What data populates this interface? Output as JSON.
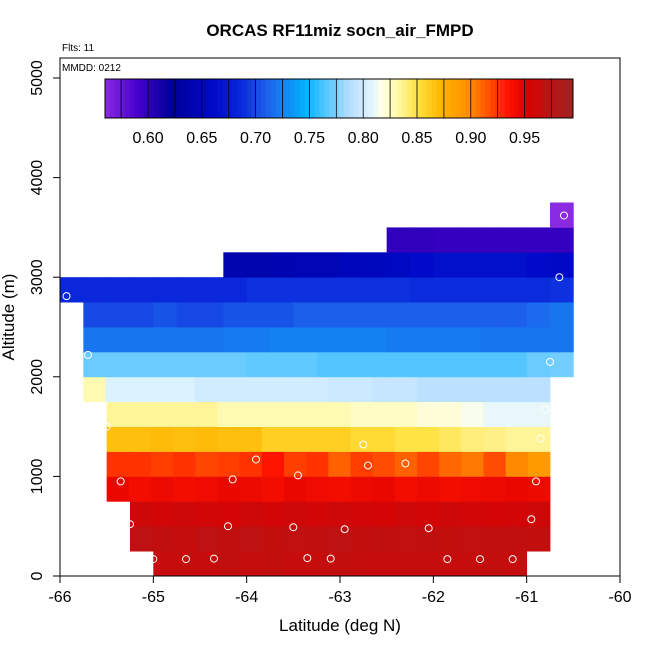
{
  "chart_data": {
    "type": "heatmap",
    "title": "ORCAS RF11miz socn_air_FMPD",
    "xlabel": "Latitude (deg N)",
    "ylabel": "Altitude (m)",
    "xlim": [
      -66,
      -60
    ],
    "ylim": [
      0,
      5200
    ],
    "x_ticks": [
      -66,
      -65,
      -64,
      -63,
      -62,
      -61,
      -60
    ],
    "y_ticks": [
      0,
      1000,
      2000,
      3000,
      4000,
      5000
    ],
    "flights_note": "Flts: 11",
    "date_note": "MMDD: 0212",
    "colorbar": {
      "vmin": 0.56,
      "vmax": 0.995,
      "ticks": [
        0.6,
        0.65,
        0.7,
        0.75,
        0.8,
        0.85,
        0.9,
        0.95
      ],
      "tick_labels": [
        "0.60",
        "0.65",
        "0.70",
        "0.75",
        "0.80",
        "0.85",
        "0.90",
        "0.95"
      ]
    },
    "bin_height_m": 250,
    "rows": [
      {
        "alt": 125,
        "x_start": -65.0,
        "x_end": -61.0,
        "values": [
          0.965,
          0.966,
          0.965,
          0.968,
          0.966,
          0.967,
          0.965,
          0.966,
          0.967,
          0.966,
          0.965,
          0.966,
          0.966,
          0.965,
          0.966,
          0.967,
          0.966
        ]
      },
      {
        "alt": 375,
        "x_start": -65.25,
        "x_end": -60.75,
        "values": [
          0.97,
          0.968,
          0.966,
          0.97,
          0.968,
          0.97,
          0.967,
          0.969,
          0.968,
          0.97,
          0.967,
          0.968,
          0.969,
          0.968,
          0.967,
          0.969,
          0.968,
          0.968,
          0.967
        ]
      },
      {
        "alt": 625,
        "x_start": -65.25,
        "x_end": -60.75,
        "values": [
          0.96,
          0.958,
          0.96,
          0.958,
          0.957,
          0.96,
          0.958,
          0.96,
          0.958,
          0.96,
          0.958,
          0.957,
          0.96,
          0.958,
          0.96,
          0.958,
          0.957,
          0.958,
          0.96
        ]
      },
      {
        "alt": 875,
        "x_start": -65.5,
        "x_end": -60.75,
        "values": [
          0.945,
          0.94,
          0.943,
          0.94,
          0.942,
          0.945,
          0.943,
          0.94,
          0.945,
          0.942,
          0.94,
          0.943,
          0.945,
          0.94,
          0.943,
          0.94,
          0.942,
          0.943,
          0.945,
          0.943
        ]
      },
      {
        "alt": 1125,
        "x_start": -65.5,
        "x_end": -60.75,
        "values": [
          0.925,
          0.925,
          0.922,
          0.925,
          0.92,
          0.922,
          0.925,
          0.935,
          0.922,
          0.925,
          0.912,
          0.922,
          0.918,
          0.912,
          0.92,
          0.91,
          0.905,
          0.918,
          0.9,
          0.89
        ]
      },
      {
        "alt": 1375,
        "x_start": -65.5,
        "x_end": -60.75,
        "values": [
          0.868,
          0.868,
          0.87,
          0.868,
          0.87,
          0.868,
          0.868,
          0.86,
          0.86,
          0.86,
          0.86,
          0.855,
          0.855,
          0.85,
          0.85,
          0.845,
          0.84,
          0.838,
          0.835,
          0.835
        ]
      },
      {
        "alt": 1625,
        "x_start": -65.5,
        "x_end": -60.75,
        "values": [
          0.835,
          0.835,
          0.835,
          0.835,
          0.835,
          0.83,
          0.83,
          0.83,
          0.83,
          0.83,
          0.83,
          0.825,
          0.825,
          0.825,
          0.82,
          0.82,
          0.815,
          0.81,
          0.81,
          0.81
        ]
      },
      {
        "alt": 1875,
        "x_start": -65.75,
        "x_end": -60.75,
        "values": [
          0.83,
          0.805,
          0.805,
          0.805,
          0.805,
          0.8,
          0.8,
          0.8,
          0.8,
          0.8,
          0.8,
          0.798,
          0.798,
          0.795,
          0.795,
          0.79,
          0.79,
          0.79,
          0.79,
          0.79,
          0.79
        ]
      },
      {
        "alt": 2125,
        "x_start": -65.75,
        "x_end": -60.5,
        "values": [
          0.77,
          0.77,
          0.77,
          0.77,
          0.77,
          0.77,
          0.77,
          0.768,
          0.768,
          0.768,
          0.765,
          0.765,
          0.765,
          0.765,
          0.765,
          0.765,
          0.765,
          0.765,
          0.765,
          0.77,
          0.772
        ]
      },
      {
        "alt": 2375,
        "x_start": -65.75,
        "x_end": -60.5,
        "values": [
          0.72,
          0.72,
          0.72,
          0.72,
          0.72,
          0.72,
          0.722,
          0.722,
          0.725,
          0.725,
          0.725,
          0.725,
          0.725,
          0.722,
          0.722,
          0.722,
          0.722,
          0.72,
          0.72,
          0.72,
          0.72
        ]
      },
      {
        "alt": 2625,
        "x_start": -65.75,
        "x_end": -60.5,
        "values": [
          0.7,
          0.7,
          0.7,
          0.705,
          0.7,
          0.7,
          0.705,
          0.705,
          0.705,
          0.71,
          0.71,
          0.71,
          0.71,
          0.71,
          0.71,
          0.71,
          0.71,
          0.71,
          0.71,
          0.715,
          0.72
        ]
      },
      {
        "alt": 2875,
        "x_start": -66.0,
        "x_end": -60.5,
        "values": [
          0.685,
          0.685,
          0.685,
          0.685,
          0.685,
          0.685,
          0.685,
          0.685,
          0.69,
          0.69,
          0.69,
          0.69,
          0.69,
          0.69,
          0.69,
          0.688,
          0.688,
          0.688,
          0.688,
          0.688,
          0.688,
          0.69
        ]
      },
      {
        "alt": 3125,
        "x_start": -64.25,
        "x_end": -60.5,
        "values": [
          0.64,
          0.64,
          0.642,
          0.645,
          0.645,
          0.65,
          0.652,
          0.655,
          0.66,
          0.665,
          0.665,
          0.665,
          0.665,
          0.66,
          0.658
        ]
      },
      {
        "alt": 3375,
        "x_start": -62.5,
        "x_end": -60.5,
        "values": [
          0.6,
          0.6,
          0.598,
          0.598,
          0.598,
          0.598,
          0.598,
          0.598
        ]
      },
      {
        "alt": 3625,
        "x_start": -60.75,
        "x_end": -60.5,
        "values": [
          0.56
        ]
      }
    ],
    "observations": [
      {
        "lat": -65.0,
        "alt": 170
      },
      {
        "lat": -64.65,
        "alt": 170
      },
      {
        "lat": -64.35,
        "alt": 175
      },
      {
        "lat": -63.35,
        "alt": 180
      },
      {
        "lat": -63.1,
        "alt": 175
      },
      {
        "lat": -61.85,
        "alt": 170
      },
      {
        "lat": -61.5,
        "alt": 170
      },
      {
        "lat": -61.15,
        "alt": 170
      },
      {
        "lat": -65.25,
        "alt": 520
      },
      {
        "lat": -64.2,
        "alt": 500
      },
      {
        "lat": -63.5,
        "alt": 490
      },
      {
        "lat": -62.95,
        "alt": 470
      },
      {
        "lat": -62.05,
        "alt": 480
      },
      {
        "lat": -60.95,
        "alt": 570
      },
      {
        "lat": -65.35,
        "alt": 950
      },
      {
        "lat": -64.15,
        "alt": 970
      },
      {
        "lat": -63.9,
        "alt": 1170
      },
      {
        "lat": -63.45,
        "alt": 1010
      },
      {
        "lat": -62.7,
        "alt": 1110
      },
      {
        "lat": -62.3,
        "alt": 1130
      },
      {
        "lat": -60.9,
        "alt": 950
      },
      {
        "lat": -65.5,
        "alt": 1500
      },
      {
        "lat": -62.75,
        "alt": 1320
      },
      {
        "lat": -60.85,
        "alt": 1380
      },
      {
        "lat": -60.8,
        "alt": 1670
      },
      {
        "lat": -65.7,
        "alt": 2220
      },
      {
        "lat": -60.75,
        "alt": 2150
      },
      {
        "lat": -65.93,
        "alt": 2810
      },
      {
        "lat": -60.65,
        "alt": 3000
      },
      {
        "lat": -60.6,
        "alt": 3620
      }
    ]
  }
}
